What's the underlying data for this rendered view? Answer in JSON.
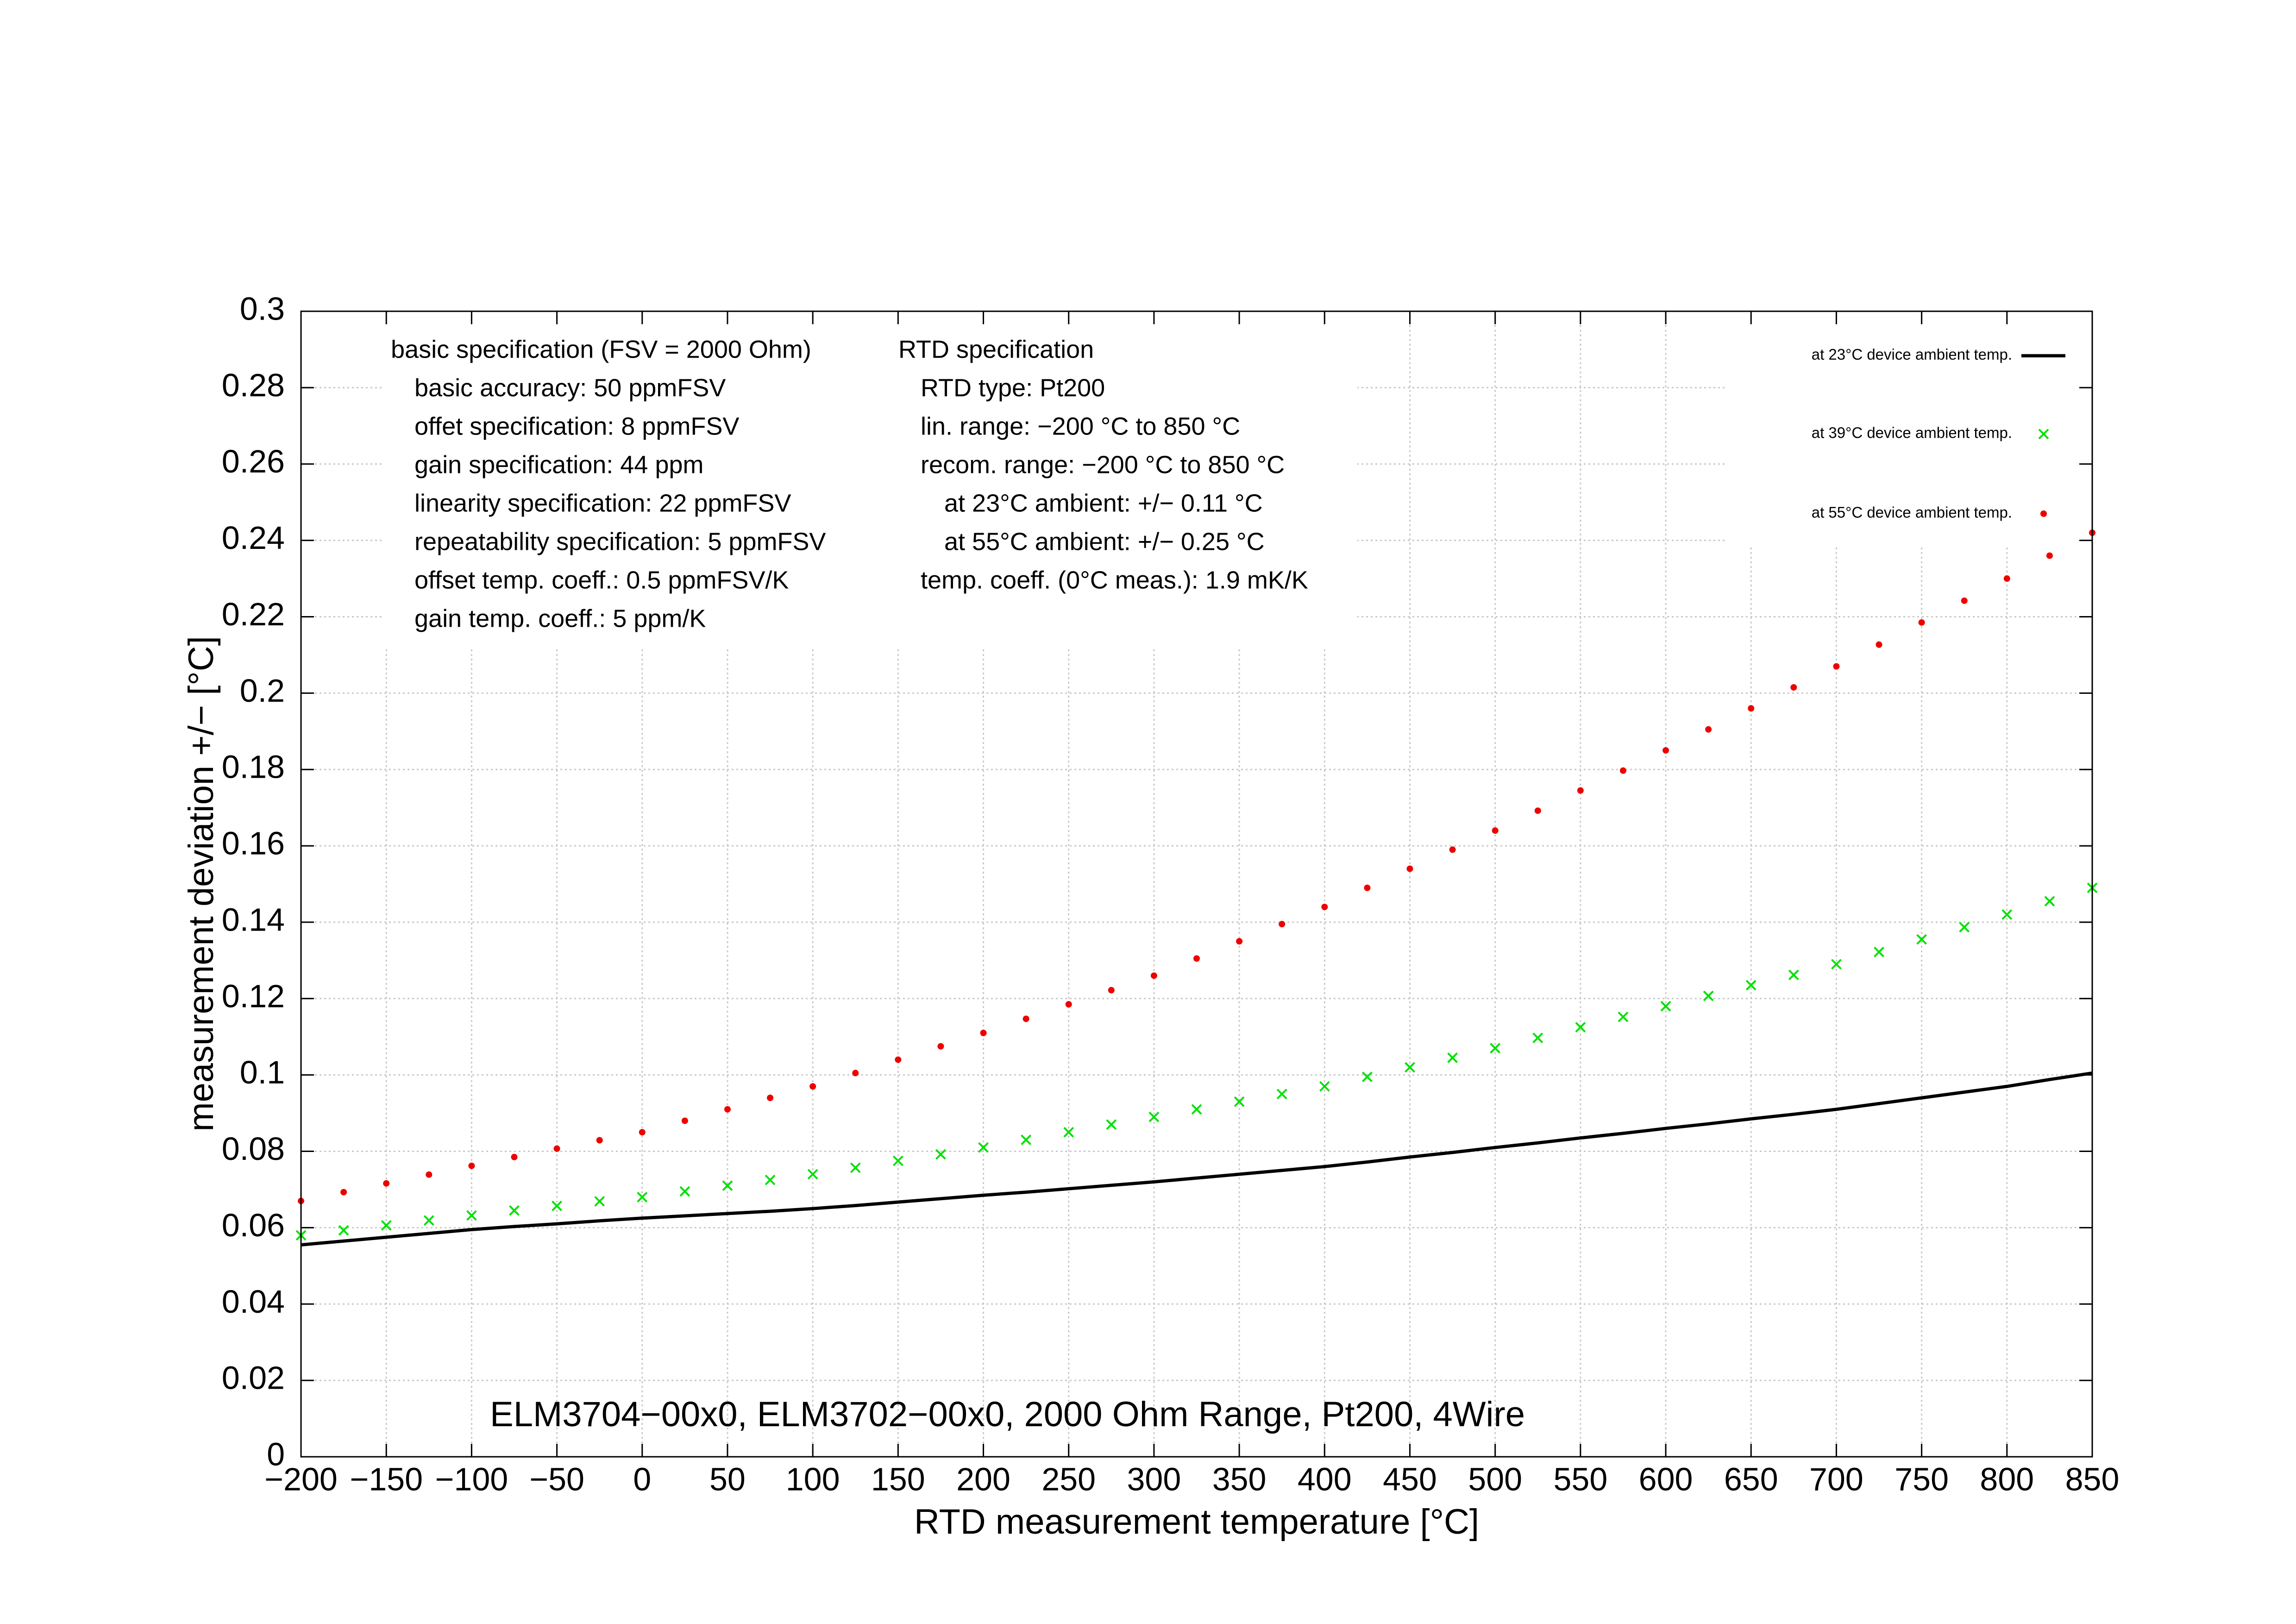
{
  "chart_data": {
    "type": "line",
    "title": "ELM3704−00x0, ELM3702−00x0, 2000 Ohm Range, Pt200, 4Wire",
    "x_label": "RTD measurement temperature [°C]",
    "y_label": "measurement deviation +/− [°C]",
    "xlim": [
      -200,
      850
    ],
    "xticks": [
      {
        "value": -200,
        "label": "−200"
      },
      {
        "value": -150,
        "label": "−150"
      },
      {
        "value": -100,
        "label": "−100"
      },
      {
        "value": -50,
        "label": "−50"
      },
      0,
      50,
      100,
      150,
      200,
      250,
      300,
      350,
      400,
      450,
      500,
      550,
      600,
      650,
      700,
      750,
      800,
      850
    ],
    "ylim": [
      0,
      0.3
    ],
    "yticks": [
      0,
      0.02,
      0.04,
      0.06,
      0.08,
      0.1,
      0.12,
      0.14,
      0.16,
      0.18,
      0.2,
      0.22,
      0.24,
      0.26,
      0.28,
      0.3
    ],
    "grid": true,
    "legend": "upper right",
    "x": [
      -200,
      -175,
      -150,
      -125,
      -100,
      -75,
      -50,
      -25,
      0,
      25,
      50,
      75,
      100,
      125,
      150,
      175,
      200,
      225,
      250,
      275,
      300,
      325,
      350,
      375,
      400,
      425,
      450,
      475,
      500,
      525,
      550,
      575,
      600,
      625,
      650,
      675,
      700,
      725,
      750,
      775,
      800,
      825,
      850
    ],
    "series": [
      {
        "name": "at 23°C device ambient temp.",
        "color": "#000000",
        "marker": "line",
        "values": [
          0.0555,
          0.0565,
          0.0575,
          0.0585,
          0.0595,
          0.0603,
          0.061,
          0.0618,
          0.0625,
          0.0631,
          0.0637,
          0.0643,
          0.065,
          0.0658,
          0.0667,
          0.0676,
          0.0685,
          0.0693,
          0.0702,
          0.0711,
          0.072,
          0.073,
          0.074,
          0.075,
          0.076,
          0.0772,
          0.0785,
          0.0797,
          0.081,
          0.0822,
          0.0835,
          0.0847,
          0.086,
          0.0872,
          0.0885,
          0.0897,
          0.091,
          0.0925,
          0.094,
          0.0955,
          0.097,
          0.0988,
          0.1005
        ]
      },
      {
        "name": "at 39°C device ambient temp.",
        "color": "#00e000",
        "marker": "cross",
        "values": [
          0.058,
          0.0593,
          0.0606,
          0.0619,
          0.0632,
          0.0645,
          0.0657,
          0.0669,
          0.068,
          0.0695,
          0.071,
          0.0725,
          0.074,
          0.0757,
          0.0775,
          0.0792,
          0.081,
          0.083,
          0.085,
          0.087,
          0.089,
          0.091,
          0.093,
          0.095,
          0.097,
          0.0995,
          0.102,
          0.1045,
          0.107,
          0.1097,
          0.1125,
          0.1152,
          0.118,
          0.1207,
          0.1235,
          0.1262,
          0.129,
          0.1322,
          0.1355,
          0.1387,
          0.142,
          0.1455,
          0.149
        ]
      },
      {
        "name": "at 55°C device ambient temp.",
        "color": "#ee0000",
        "marker": "dot",
        "values": [
          0.067,
          0.0693,
          0.0716,
          0.0739,
          0.0762,
          0.0785,
          0.0807,
          0.0829,
          0.085,
          0.088,
          0.091,
          0.094,
          0.097,
          0.1005,
          0.104,
          0.1075,
          0.111,
          0.1147,
          0.1185,
          0.1222,
          0.126,
          0.1305,
          0.135,
          0.1395,
          0.144,
          0.149,
          0.154,
          0.159,
          0.164,
          0.1692,
          0.1745,
          0.1797,
          0.185,
          0.1905,
          0.196,
          0.2015,
          0.207,
          0.2127,
          0.2185,
          0.2242,
          0.23,
          0.236,
          0.242
        ]
      }
    ],
    "annotations": [
      {
        "title": "basic specification (FSV = 2000 Ohm)",
        "lines": [
          "basic accuracy: 50 ppmFSV",
          "offet specification: 8 ppmFSV",
          "gain specification: 44 ppm",
          "linearity specification: 22 ppmFSV",
          "repeatability specification: 5 ppmFSV",
          "offset temp. coeff.: 0.5 ppmFSV/K",
          "gain temp. coeff.: 5 ppm/K"
        ]
      },
      {
        "title": "RTD specification",
        "lines": [
          "RTD type: Pt200",
          "lin. range: −200 °C to 850 °C",
          "recom. range: −200 °C to 850 °C",
          "at 23°C ambient: +/− 0.11 °C",
          "at 55°C ambient: +/− 0.25 °C",
          "temp. coeff. (0°C meas.): 1.9 mK/K"
        ]
      }
    ]
  }
}
